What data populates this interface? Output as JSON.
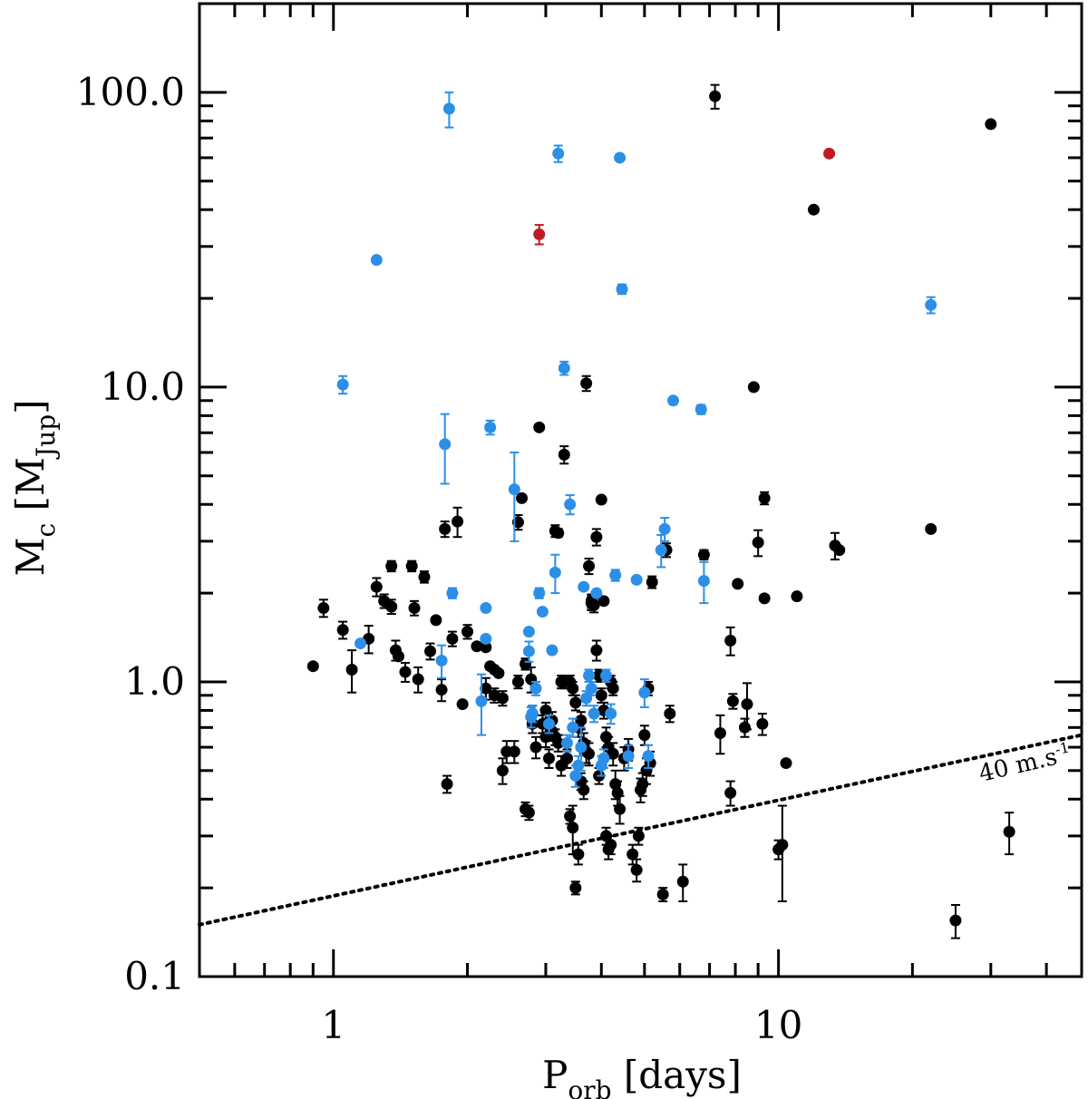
{
  "chart_data": {
    "type": "scatter",
    "title": "",
    "xlabel": {
      "main": "P",
      "sub": "orb",
      "rest": " [days]"
    },
    "ylabel": {
      "main": "M",
      "sub": "c",
      "rest1": " [M",
      "sub2": "Jup",
      "rest2": "]"
    },
    "x_scale": "log",
    "y_scale": "log",
    "xlim": [
      0.5,
      48
    ],
    "ylim": [
      0.1,
      200
    ],
    "x_ticks": [
      {
        "value": 1,
        "label": "1"
      },
      {
        "value": 10,
        "label": "10"
      }
    ],
    "y_ticks": [
      {
        "value": 0.1,
        "label": "0.1"
      },
      {
        "value": 1,
        "label": "1.0"
      },
      {
        "value": 10,
        "label": "10.0"
      },
      {
        "value": 100,
        "label": "100.0"
      }
    ],
    "grid": false,
    "series": [
      {
        "color": "#000000",
        "points": [
          [
            0.9,
            1.13,
            0
          ],
          [
            0.95,
            1.78,
            0.12
          ],
          [
            1.05,
            1.5,
            0.1
          ],
          [
            1.1,
            1.1,
            0.18
          ],
          [
            1.2,
            1.4,
            0.15
          ],
          [
            1.25,
            2.1,
            0.15
          ],
          [
            1.3,
            1.88,
            0.1
          ],
          [
            1.35,
            1.8,
            0.1
          ],
          [
            1.35,
            2.47,
            0.1
          ],
          [
            1.38,
            1.28,
            0.1
          ],
          [
            1.4,
            1.22,
            0
          ],
          [
            1.45,
            1.08,
            0.08
          ],
          [
            1.5,
            2.47,
            0.1
          ],
          [
            1.52,
            1.78,
            0.1
          ],
          [
            1.55,
            1.02,
            0.1
          ],
          [
            1.6,
            2.27,
            0.1
          ],
          [
            1.65,
            1.27,
            0.08
          ],
          [
            1.7,
            1.62,
            0
          ],
          [
            1.75,
            0.94,
            0.08
          ],
          [
            1.78,
            3.3,
            0.2
          ],
          [
            1.8,
            0.45,
            0.03
          ],
          [
            1.85,
            1.4,
            0.08
          ],
          [
            1.9,
            3.5,
            0.4
          ],
          [
            1.95,
            0.84,
            0
          ],
          [
            2,
            1.48,
            0.08
          ],
          [
            2.1,
            1.32,
            0
          ],
          [
            2.2,
            1.31,
            0
          ],
          [
            2.25,
            1.13,
            0
          ],
          [
            2.3,
            1.1,
            0
          ],
          [
            2.35,
            1.07,
            0
          ],
          [
            2.4,
            0.5,
            0.05
          ],
          [
            2.45,
            0.58,
            0.05
          ],
          [
            2.55,
            0.58,
            0.05
          ],
          [
            2.6,
            3.48,
            0.2
          ],
          [
            2.65,
            4.2,
            0
          ],
          [
            2.7,
            0.37,
            0.02
          ],
          [
            2.75,
            0.36,
            0.02
          ],
          [
            2.78,
            1.02,
            0.1
          ],
          [
            2.8,
            0.78,
            0.05
          ],
          [
            2.85,
            0.6,
            0.05
          ],
          [
            2.9,
            7.3,
            0
          ],
          [
            2.95,
            0.72,
            0.05
          ],
          [
            3,
            0.8,
            0.05
          ],
          [
            3.05,
            0.55,
            0.04
          ],
          [
            3.1,
            0.68,
            0.05
          ],
          [
            3.15,
            0.65,
            0.04
          ],
          [
            3.2,
            0.62,
            0.04
          ],
          [
            3.25,
            0.52,
            0.04
          ],
          [
            3.3,
            5.9,
            0.4
          ],
          [
            3.35,
            0.55,
            0.04
          ],
          [
            3.4,
            0.35,
            0.02
          ],
          [
            3.45,
            0.32,
            0.06
          ],
          [
            3.5,
            0.2,
            0.01
          ],
          [
            3.55,
            0.26,
            0.02
          ],
          [
            3.6,
            0.46,
            0.03
          ],
          [
            3.65,
            0.43,
            0.03
          ],
          [
            3.7,
            10.3,
            0.6
          ],
          [
            3.75,
            2.47,
            0.15
          ],
          [
            3.8,
            1.88,
            0.1
          ],
          [
            3.85,
            1.82,
            0.1
          ],
          [
            3.9,
            1.28,
            0.1
          ],
          [
            3.95,
            0.48,
            0.03
          ],
          [
            4,
            4.15,
            0
          ],
          [
            4.05,
            1.88,
            0
          ],
          [
            4.1,
            0.3,
            0.02
          ],
          [
            4.15,
            0.27,
            0.02
          ],
          [
            4.2,
            0.28,
            0.02
          ],
          [
            4.25,
            0.57,
            0.05
          ],
          [
            4.3,
            0.45,
            0.05
          ],
          [
            4.35,
            0.42,
            0.04
          ],
          [
            4.4,
            0.37,
            0.04
          ],
          [
            4.5,
            0.55,
            0.05
          ],
          [
            4.6,
            0.59,
            0.05
          ],
          [
            4.7,
            0.26,
            0.02
          ],
          [
            4.8,
            0.23,
            0.02
          ],
          [
            4.85,
            0.3,
            0.02
          ],
          [
            4.9,
            0.43,
            0.04
          ],
          [
            4.95,
            0.45,
            0.04
          ],
          [
            5,
            0.66,
            0.05
          ],
          [
            5.05,
            0.5,
            0.05
          ],
          [
            5.1,
            0.95,
            0.05
          ],
          [
            5.15,
            0.53,
            0.05
          ],
          [
            5.2,
            2.18,
            0.1
          ],
          [
            5.5,
            0.19,
            0.01
          ],
          [
            5.6,
            2.8,
            0.15
          ],
          [
            5.7,
            0.78,
            0.05
          ],
          [
            6.1,
            0.21,
            0.03
          ],
          [
            6.8,
            2.7,
            0.1
          ],
          [
            7.2,
            97,
            9
          ],
          [
            7.4,
            0.67,
            0.1
          ],
          [
            7.8,
            1.38,
            0.15
          ],
          [
            7.8,
            0.42,
            0.04
          ],
          [
            7.9,
            0.86,
            0.05
          ],
          [
            8.1,
            2.15,
            0
          ],
          [
            8.4,
            0.7,
            0.05
          ],
          [
            8.5,
            0.84,
            0.15
          ],
          [
            8.8,
            10,
            0
          ],
          [
            9,
            2.97,
            0.3
          ],
          [
            9.2,
            0.72,
            0.06
          ],
          [
            9.3,
            1.92,
            0
          ],
          [
            9.3,
            4.2,
            0.2
          ],
          [
            10,
            0.27,
            0.02
          ],
          [
            10.2,
            0.28,
            0.1
          ],
          [
            10.4,
            0.53,
            0
          ],
          [
            11,
            1.95,
            0
          ],
          [
            12,
            40,
            0
          ],
          [
            13.4,
            2.9,
            0.3
          ],
          [
            13.7,
            2.8,
            0
          ],
          [
            22,
            3.3,
            0
          ],
          [
            25,
            0.155,
            0.02
          ],
          [
            30,
            78,
            0
          ],
          [
            33,
            0.31,
            0.05
          ],
          [
            3.15,
            3.25,
            0.15
          ],
          [
            3.2,
            3.2,
            0.1
          ],
          [
            3.25,
            1.0,
            0.05
          ],
          [
            3.3,
            1.0,
            0.05
          ],
          [
            3.4,
            1.0,
            0.05
          ],
          [
            3.45,
            0.95,
            0.05
          ],
          [
            3.5,
            0.85,
            0.05
          ],
          [
            3.55,
            0.7,
            0.05
          ],
          [
            3.6,
            0.74,
            0.05
          ],
          [
            3.65,
            0.62,
            0.05
          ],
          [
            3.7,
            0.58,
            0.05
          ],
          [
            3.75,
            0.57,
            0.05
          ],
          [
            3.8,
            1.85,
            0.1
          ],
          [
            3.9,
            3.1,
            0.2
          ],
          [
            3.95,
            1.05,
            0.05
          ],
          [
            4,
            0.9,
            0.05
          ],
          [
            4.05,
            0.8,
            0.05
          ],
          [
            4.1,
            0.65,
            0.05
          ],
          [
            4.15,
            0.6,
            0.05
          ],
          [
            4.2,
            1.0,
            0.05
          ],
          [
            4.25,
            0.95,
            0.05
          ],
          [
            2.2,
            0.95,
            0.08
          ],
          [
            2.3,
            0.9,
            0.05
          ],
          [
            2.4,
            0.88,
            0.05
          ],
          [
            2.6,
            1.0,
            0.05
          ],
          [
            2.7,
            1.15,
            0.05
          ],
          [
            2.8,
            0.72,
            0.05
          ],
          [
            3.0,
            0.65,
            0.05
          ],
          [
            3.1,
            0.74,
            0.05
          ]
        ]
      },
      {
        "color": "#2b8fe8",
        "points": [
          [
            1.05,
            10.2,
            0.7
          ],
          [
            1.15,
            1.35,
            0
          ],
          [
            1.25,
            27,
            0
          ],
          [
            1.75,
            1.18,
            0.15
          ],
          [
            1.78,
            6.4,
            1.7
          ],
          [
            1.82,
            88,
            12
          ],
          [
            1.85,
            2.0,
            0.08
          ],
          [
            2.15,
            0.86,
            0.2
          ],
          [
            2.2,
            1.4,
            0
          ],
          [
            2.2,
            1.78,
            0
          ],
          [
            2.25,
            7.3,
            0.4
          ],
          [
            2.55,
            4.5,
            1.5
          ],
          [
            2.75,
            1.27,
            0.1
          ],
          [
            2.75,
            1.48,
            0
          ],
          [
            2.78,
            0.76,
            0.06
          ],
          [
            2.8,
            0.78,
            0.05
          ],
          [
            2.85,
            0.95,
            0.05
          ],
          [
            2.9,
            2.0,
            0.08
          ],
          [
            2.95,
            1.73,
            0
          ],
          [
            3.05,
            0.72,
            0.05
          ],
          [
            3.1,
            1.28,
            0
          ],
          [
            3.15,
            2.35,
            0.35
          ],
          [
            3.2,
            62,
            4
          ],
          [
            3.3,
            11.6,
            0.6
          ],
          [
            3.35,
            0.62,
            0.04
          ],
          [
            3.4,
            4.0,
            0.3
          ],
          [
            3.45,
            0.7,
            0.05
          ],
          [
            3.5,
            0.48,
            0.04
          ],
          [
            3.55,
            0.52,
            0.04
          ],
          [
            3.6,
            0.6,
            0.1
          ],
          [
            3.65,
            2.1,
            0
          ],
          [
            3.7,
            0.88,
            0.05
          ],
          [
            3.75,
            1.05,
            0.05
          ],
          [
            3.8,
            0.95,
            0.05
          ],
          [
            3.85,
            0.78,
            0.05
          ],
          [
            3.9,
            2.0,
            0
          ],
          [
            4.0,
            0.52,
            0.04
          ],
          [
            4.05,
            0.55,
            0.04
          ],
          [
            4.1,
            1.05,
            0.05
          ],
          [
            4.2,
            0.78,
            0.06
          ],
          [
            4.3,
            2.3,
            0.1
          ],
          [
            4.4,
            60,
            0
          ],
          [
            4.45,
            21.5,
            0.8
          ],
          [
            4.6,
            0.56,
            0.05
          ],
          [
            4.8,
            2.22,
            0
          ],
          [
            5,
            0.92,
            0.1
          ],
          [
            5.1,
            0.56,
            0.05
          ],
          [
            5.45,
            2.8,
            0.35
          ],
          [
            5.55,
            3.3,
            0.3
          ],
          [
            5.8,
            9,
            0
          ],
          [
            6.7,
            8.4,
            0.3
          ],
          [
            6.8,
            2.2,
            0.35
          ],
          [
            22,
            19,
            1.2
          ]
        ]
      },
      {
        "color": "#c01b22",
        "points": [
          [
            2.9,
            33,
            2.5
          ],
          [
            13,
            62,
            0
          ]
        ]
      }
    ],
    "annotations": [
      {
        "text": "40 m.s",
        "sup": "-1"
      }
    ],
    "reference_line": {
      "style": "dotted",
      "color": "#000000",
      "x": [
        0.5,
        48
      ],
      "y": [
        0.15,
        0.66
      ]
    },
    "legend": "none"
  }
}
